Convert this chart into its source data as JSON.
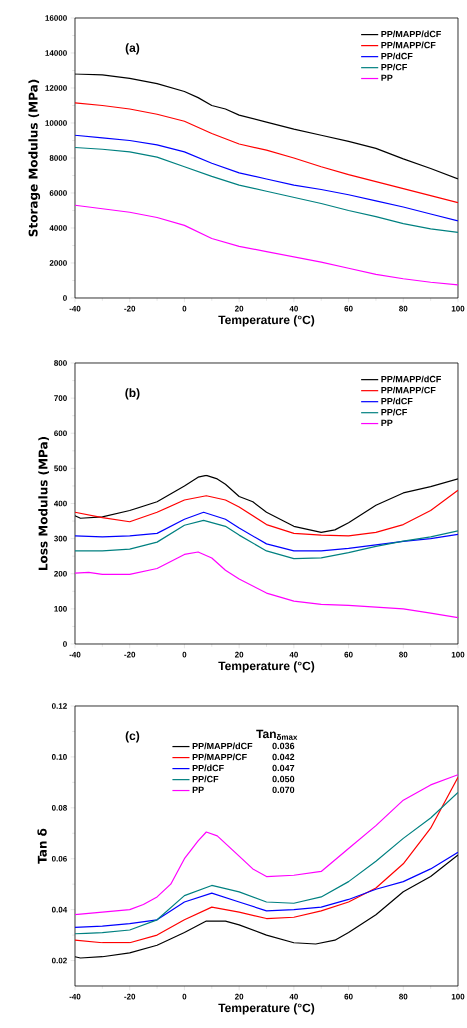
{
  "chart_data": [
    {
      "type": "line",
      "xlabel": "Temperature (°C)",
      "ylabel": "Storage Modulus (MPa)",
      "annotations": [
        "(a)"
      ],
      "xlim": [
        -40,
        100
      ],
      "xticks": [
        -40,
        -20,
        0,
        20,
        40,
        60,
        80,
        100
      ],
      "ylim": [
        0,
        16000
      ],
      "yticks": [
        0,
        2000,
        4000,
        6000,
        8000,
        10000,
        12000,
        14000,
        16000
      ],
      "legend": "top right",
      "grid": false,
      "marker": "none",
      "line_style": "solid",
      "series": [
        {
          "name": "PP/MAPP/dCF",
          "color": "#000000",
          "x": [
            -40,
            -30,
            -20,
            -10,
            0,
            5,
            10,
            15,
            20,
            30,
            40,
            50,
            60,
            70,
            80,
            90,
            100
          ],
          "values": [
            12800,
            12750,
            12550,
            12250,
            11800,
            11450,
            11000,
            10800,
            10450,
            10050,
            9650,
            9300,
            8950,
            8550,
            7950,
            7400,
            6800
          ]
        },
        {
          "name": "PP/MAPP/CF",
          "color": "#ff0000",
          "x": [
            -40,
            -30,
            -20,
            -10,
            0,
            10,
            20,
            30,
            40,
            50,
            60,
            70,
            80,
            90,
            100
          ],
          "values": [
            11150,
            11000,
            10800,
            10500,
            10100,
            9400,
            8800,
            8450,
            8000,
            7500,
            7050,
            6650,
            6250,
            5850,
            5450
          ]
        },
        {
          "name": "PP/dCF",
          "color": "#0000ff",
          "x": [
            -40,
            -30,
            -20,
            -10,
            0,
            10,
            20,
            30,
            40,
            50,
            60,
            70,
            80,
            90,
            100
          ],
          "values": [
            9300,
            9150,
            9000,
            8750,
            8350,
            7700,
            7150,
            6800,
            6450,
            6200,
            5900,
            5550,
            5200,
            4800,
            4400
          ]
        },
        {
          "name": "PP/CF",
          "color": "#008080",
          "x": [
            -40,
            -30,
            -20,
            -10,
            0,
            10,
            20,
            30,
            40,
            50,
            60,
            70,
            80,
            90,
            100
          ],
          "values": [
            8600,
            8500,
            8350,
            8050,
            7500,
            6950,
            6450,
            6100,
            5750,
            5400,
            5000,
            4650,
            4250,
            3950,
            3750
          ]
        },
        {
          "name": "PP",
          "color": "#ff00ff",
          "x": [
            -40,
            -30,
            -20,
            -10,
            0,
            10,
            20,
            30,
            40,
            50,
            60,
            70,
            80,
            90,
            100
          ],
          "values": [
            5300,
            5100,
            4900,
            4600,
            4150,
            3400,
            2950,
            2650,
            2350,
            2050,
            1700,
            1350,
            1100,
            900,
            750
          ]
        }
      ]
    },
    {
      "type": "line",
      "xlabel": "Temperature (°C)",
      "ylabel": "Loss Modulus (MPa)",
      "annotations": [
        "(b)"
      ],
      "xlim": [
        -40,
        100
      ],
      "xticks": [
        -40,
        -20,
        0,
        20,
        40,
        60,
        80,
        100
      ],
      "ylim": [
        0,
        800
      ],
      "yticks": [
        0,
        100,
        200,
        300,
        400,
        500,
        600,
        700,
        800
      ],
      "legend": "top right",
      "grid": false,
      "marker": "none",
      "line_style": "solid",
      "series": [
        {
          "name": "PP/MAPP/dCF",
          "color": "#000000",
          "x": [
            -40,
            -38,
            -30,
            -20,
            -10,
            0,
            5,
            8,
            12,
            15,
            20,
            25,
            30,
            40,
            50,
            55,
            60,
            70,
            80,
            90,
            100
          ],
          "values": [
            365,
            358,
            362,
            380,
            405,
            450,
            475,
            480,
            470,
            455,
            420,
            405,
            375,
            335,
            318,
            325,
            345,
            395,
            430,
            448,
            470
          ]
        },
        {
          "name": "PP/MAPP/CF",
          "color": "#ff0000",
          "x": [
            -40,
            -30,
            -20,
            -10,
            0,
            8,
            15,
            20,
            30,
            40,
            50,
            60,
            70,
            80,
            90,
            100
          ],
          "values": [
            375,
            360,
            348,
            375,
            410,
            422,
            410,
            390,
            340,
            315,
            310,
            308,
            318,
            340,
            380,
            438
          ]
        },
        {
          "name": "PP/dCF",
          "color": "#0000ff",
          "x": [
            -40,
            -30,
            -20,
            -10,
            0,
            7,
            15,
            20,
            30,
            40,
            50,
            60,
            70,
            80,
            90,
            100
          ],
          "values": [
            308,
            305,
            308,
            315,
            355,
            375,
            355,
            330,
            285,
            265,
            265,
            272,
            282,
            292,
            300,
            312
          ]
        },
        {
          "name": "PP/CF",
          "color": "#008080",
          "x": [
            -40,
            -30,
            -20,
            -10,
            0,
            7,
            15,
            20,
            30,
            40,
            50,
            60,
            70,
            80,
            90,
            100
          ],
          "values": [
            265,
            265,
            270,
            290,
            338,
            352,
            335,
            310,
            265,
            243,
            245,
            260,
            278,
            293,
            305,
            322
          ]
        },
        {
          "name": "PP",
          "color": "#ff00ff",
          "x": [
            -40,
            -35,
            -30,
            -20,
            -10,
            0,
            5,
            10,
            15,
            20,
            30,
            40,
            50,
            60,
            70,
            80,
            90,
            100
          ],
          "values": [
            202,
            204,
            198,
            198,
            215,
            255,
            262,
            245,
            210,
            185,
            145,
            122,
            113,
            110,
            105,
            100,
            88,
            75
          ]
        }
      ]
    },
    {
      "type": "line",
      "xlabel": "Temperature (°C)",
      "ylabel": "Tan δ",
      "legend_title": "Tan$_{δmax}$",
      "annotations": [
        "(c)",
        "0.036",
        "0.042",
        "0.047",
        "0.050",
        "0.070"
      ],
      "xlim": [
        -40,
        100
      ],
      "xticks": [
        -40,
        -20,
        0,
        20,
        40,
        60,
        80,
        100
      ],
      "ylim": [
        0.01,
        0.12
      ],
      "yticks": [
        {
          "value": 0.02,
          "label": "0.02"
        },
        {
          "value": 0.04,
          "label": "0.04"
        },
        {
          "value": 0.06,
          "label": "0.06"
        },
        {
          "value": 0.08,
          "label": "0.08"
        },
        {
          "value": 0.1,
          "label": "0.10"
        },
        {
          "value": 0.12,
          "label": "0.12"
        }
      ],
      "legend": "top",
      "grid": false,
      "marker": "none",
      "line_style": "solid",
      "series": [
        {
          "name": "PP/MAPP/dCF",
          "color": "#000000",
          "x": [
            -40,
            -38,
            -30,
            -20,
            -10,
            0,
            8,
            15,
            20,
            30,
            40,
            48,
            55,
            60,
            70,
            80,
            90,
            100
          ],
          "values": [
            0.0215,
            0.021,
            0.0215,
            0.023,
            0.026,
            0.031,
            0.0355,
            0.0355,
            0.034,
            0.03,
            0.027,
            0.0265,
            0.028,
            0.031,
            0.038,
            0.047,
            0.053,
            0.0615
          ]
        },
        {
          "name": "PP/MAPP/CF",
          "color": "#ff0000",
          "x": [
            -40,
            -30,
            -20,
            -10,
            0,
            10,
            20,
            30,
            40,
            50,
            60,
            70,
            80,
            90,
            100
          ],
          "values": [
            0.028,
            0.027,
            0.027,
            0.03,
            0.036,
            0.041,
            0.039,
            0.0365,
            0.037,
            0.0395,
            0.043,
            0.0485,
            0.058,
            0.072,
            0.092
          ]
        },
        {
          "name": "PP/dCF",
          "color": "#0000ff",
          "x": [
            -40,
            -30,
            -20,
            -10,
            0,
            10,
            20,
            30,
            40,
            50,
            60,
            70,
            80,
            90,
            100
          ],
          "values": [
            0.033,
            0.0335,
            0.0345,
            0.036,
            0.043,
            0.0465,
            0.043,
            0.0395,
            0.04,
            0.041,
            0.044,
            0.048,
            0.051,
            0.056,
            0.0625
          ]
        },
        {
          "name": "PP/CF",
          "color": "#008080",
          "x": [
            -40,
            -30,
            -20,
            -10,
            0,
            10,
            20,
            30,
            40,
            50,
            60,
            70,
            80,
            90,
            100
          ],
          "values": [
            0.0305,
            0.031,
            0.032,
            0.036,
            0.0455,
            0.0495,
            0.047,
            0.043,
            0.0425,
            0.045,
            0.051,
            0.059,
            0.068,
            0.076,
            0.086
          ]
        },
        {
          "name": "PP",
          "color": "#ff00ff",
          "x": [
            -40,
            -30,
            -20,
            -15,
            -10,
            -5,
            0,
            5,
            8,
            12,
            20,
            25,
            30,
            40,
            50,
            60,
            70,
            80,
            90,
            100
          ],
          "values": [
            0.038,
            0.039,
            0.04,
            0.042,
            0.045,
            0.05,
            0.06,
            0.067,
            0.0705,
            0.069,
            0.061,
            0.056,
            0.053,
            0.0535,
            0.055,
            0.064,
            0.073,
            0.083,
            0.089,
            0.093
          ]
        }
      ]
    }
  ]
}
